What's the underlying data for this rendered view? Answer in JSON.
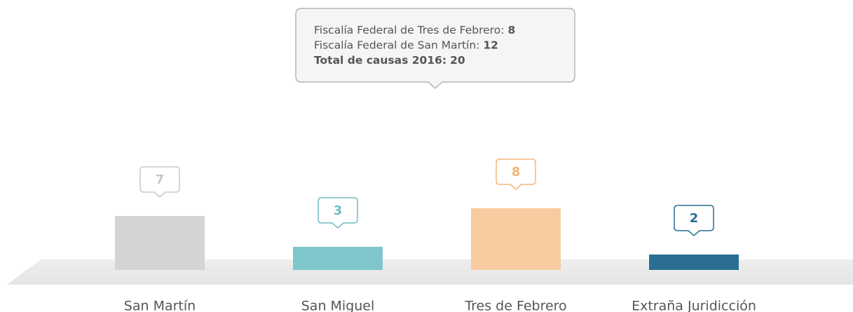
{
  "chart_data": {
    "type": "bar",
    "categories": [
      "San Martín",
      "San Miguel",
      "Tres de Febrero",
      "Extraña Juridicción"
    ],
    "values": [
      7,
      3,
      8,
      2
    ],
    "colors": [
      "#d4d4d4",
      "#7ec6cc",
      "#f8cba0",
      "#2a6f93"
    ],
    "label_colors": [
      "#c8c8c8",
      "#6fbcc3",
      "#f3b57c",
      "#2a6f93"
    ],
    "tooltip": {
      "lines": [
        {
          "label": "Fiscalía Federal de Tres de Febrero:",
          "value": 8
        },
        {
          "label": "Fiscalía Federal de San Martín:",
          "value": 12
        },
        {
          "label": "Total de causas 2016:",
          "value": 20
        }
      ]
    }
  }
}
